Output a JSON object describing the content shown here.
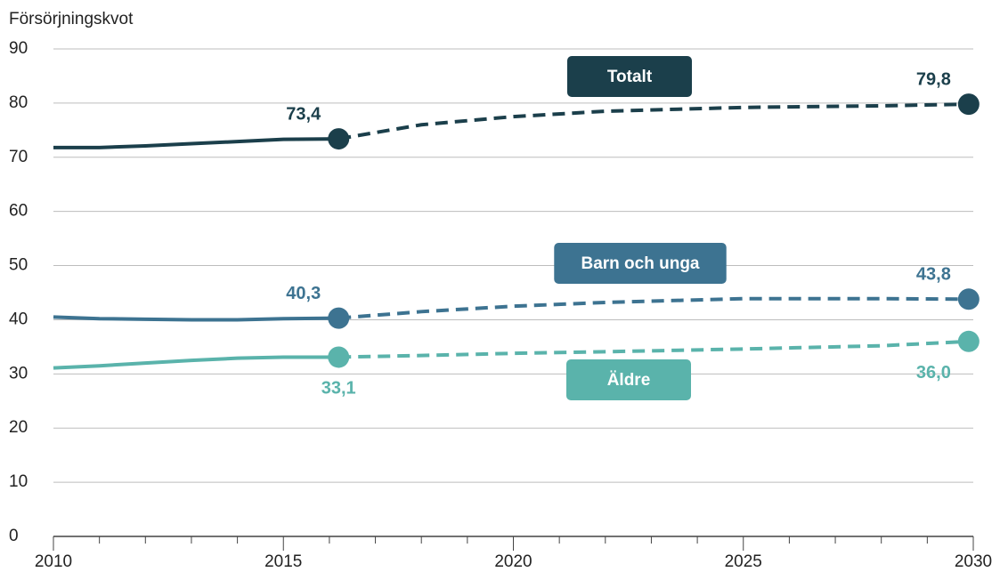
{
  "chart_data": {
    "type": "line",
    "y_label": "Försörjningskvot",
    "x": [
      2010,
      2011,
      2012,
      2013,
      2014,
      2015,
      2016.2,
      2018,
      2020,
      2022,
      2025,
      2028,
      2029.9
    ],
    "xlim": [
      2010,
      2030
    ],
    "xticks": [
      2010,
      2015,
      2020,
      2025,
      2030
    ],
    "xminorticks": [
      2011,
      2012,
      2013,
      2014,
      2016,
      2017,
      2018,
      2019,
      2021,
      2022,
      2023,
      2024,
      2026,
      2027,
      2028,
      2029
    ],
    "ylim": [
      0,
      90
    ],
    "yticks": [
      0,
      10,
      20,
      30,
      40,
      50,
      60,
      70,
      80,
      90
    ],
    "grid": true,
    "series": [
      {
        "name": "Totalt",
        "color": "#1b3f4b",
        "values": [
          71.8,
          71.8,
          72.1,
          72.5,
          72.9,
          73.3,
          73.4,
          null,
          null,
          null,
          null,
          null,
          null
        ],
        "projection": [
          null,
          null,
          null,
          null,
          null,
          null,
          73.4,
          76,
          77.5,
          78.5,
          79.2,
          79.5,
          79.8
        ],
        "value_labels": [
          null,
          null,
          null,
          null,
          null,
          null,
          "73,4",
          null,
          null,
          null,
          null,
          null,
          "79,8"
        ]
      },
      {
        "name": "Barn och unga",
        "color": "#3d7391",
        "values": [
          40.5,
          40.2,
          40.1,
          40.0,
          40.0,
          40.2,
          40.3,
          null,
          null,
          null,
          null,
          null,
          null
        ],
        "projection": [
          null,
          null,
          null,
          null,
          null,
          null,
          40.3,
          41.5,
          42.5,
          43.2,
          43.9,
          43.9,
          43.8
        ],
        "value_labels": [
          null,
          null,
          null,
          null,
          null,
          null,
          "40,3",
          null,
          null,
          null,
          null,
          null,
          "43,8"
        ]
      },
      {
        "name": "Äldre",
        "color": "#5ab3ab",
        "values": [
          31.1,
          31.5,
          32.0,
          32.5,
          32.9,
          33.1,
          33.1,
          null,
          null,
          null,
          null,
          null,
          null
        ],
        "projection": [
          null,
          null,
          null,
          null,
          null,
          null,
          33.1,
          33.4,
          33.8,
          34.1,
          34.6,
          35.2,
          36.0
        ],
        "value_labels": [
          null,
          null,
          null,
          null,
          null,
          null,
          "33,1",
          null,
          null,
          null,
          null,
          null,
          "36,0"
        ]
      }
    ]
  }
}
